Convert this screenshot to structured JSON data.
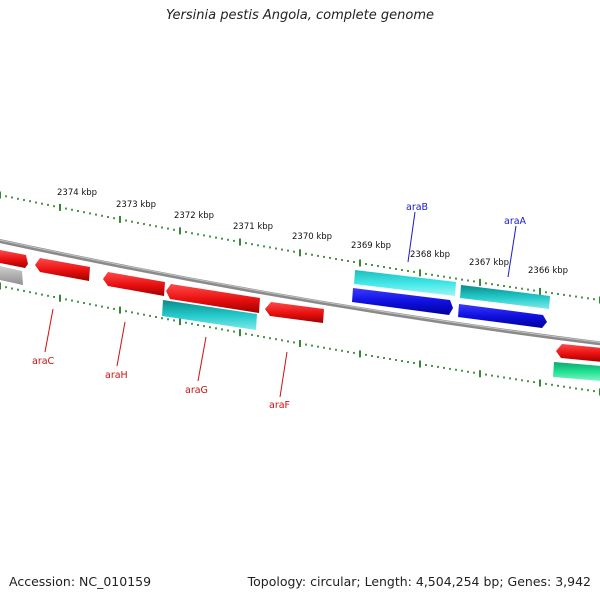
{
  "title": "Yersinia pestis Angola, complete genome",
  "footer": {
    "accession": "Accession: NC_010159",
    "summary": "Topology: circular; Length: 4,504,254 bp; Genes: 3,942"
  },
  "scale": {
    "tick_labels": [
      "2374 kbp",
      "2373 kbp",
      "2372 kbp",
      "2371 kbp",
      "2370 kbp",
      "2369 kbp",
      "2368 kbp",
      "2367 kbp",
      "2366 kbp"
    ]
  },
  "gene_labels": [
    {
      "name": "araB",
      "color": "#1a1acc"
    },
    {
      "name": "araA",
      "color": "#1a1acc"
    },
    {
      "name": "araC",
      "color": "#cc1111"
    },
    {
      "name": "araH",
      "color": "#cc1111"
    },
    {
      "name": "araG",
      "color": "#cc1111"
    },
    {
      "name": "araF",
      "color": "#cc1111"
    }
  ],
  "colors": {
    "cds_red": "#ee1111",
    "cds_cyan": "#22cccc",
    "cds_blue": "#1515dd",
    "cds_green": "#11dd88",
    "cds_grey": "#b0b0b0",
    "backbone": "#888888",
    "tick": "#1f7a1f"
  }
}
